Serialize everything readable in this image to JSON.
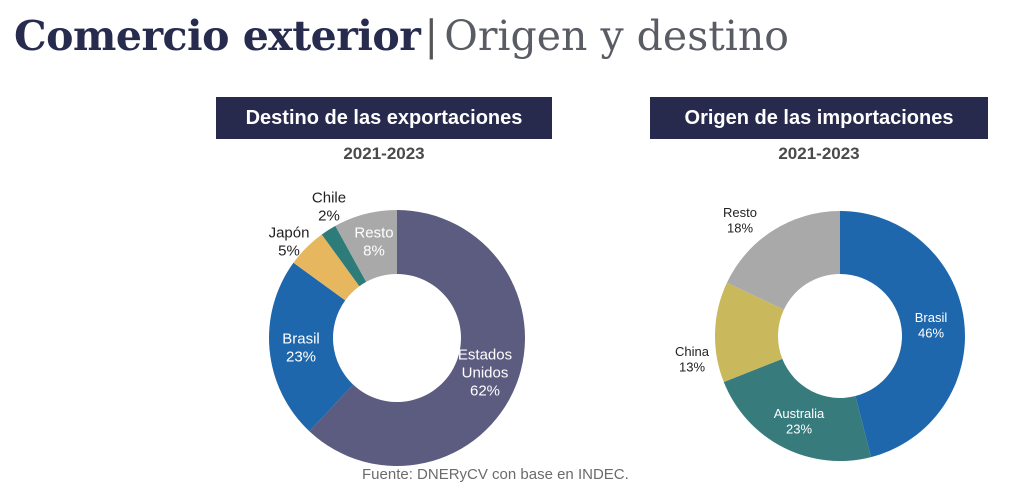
{
  "header": {
    "title_main": "Comercio exterior",
    "separator": "|",
    "title_sub": "Origen y destino"
  },
  "source": "Fuente: DNERyCV con base en INDEC.",
  "chart_data": [
    {
      "type": "pie",
      "variant": "donut",
      "title": "Destino de las exportaciones",
      "subtitle": "2021-2023",
      "categories": [
        "Estados Unidos",
        "Brasil",
        "Japón",
        "Chile",
        "Resto"
      ],
      "values": [
        62,
        23,
        5,
        2,
        8
      ],
      "unit": "%",
      "labels": [
        {
          "lines": [
            "Estados",
            "Unidos",
            "62%"
          ]
        },
        {
          "lines": [
            "Brasil",
            "23%"
          ]
        },
        {
          "lines": [
            "Japón",
            "5%"
          ]
        },
        {
          "lines": [
            "Chile",
            "2%"
          ]
        },
        {
          "lines": [
            "Resto",
            "8%"
          ]
        }
      ],
      "colors": [
        "#5c5b80",
        "#1f67ad",
        "#e6b75e",
        "#2e7c7a",
        "#a9a9a9"
      ],
      "start": "12 o'clock, clockwise"
    },
    {
      "type": "pie",
      "variant": "donut",
      "title": "Origen de las importaciones",
      "subtitle": "2021-2023",
      "categories": [
        "Brasil",
        "Australia",
        "China",
        "Resto"
      ],
      "values": [
        46,
        23,
        13,
        18
      ],
      "unit": "%",
      "labels": [
        {
          "lines": [
            "Brasil",
            "46%"
          ]
        },
        {
          "lines": [
            "Australia",
            "23%"
          ]
        },
        {
          "lines": [
            "China",
            "13%"
          ]
        },
        {
          "lines": [
            "Resto",
            "18%"
          ]
        }
      ],
      "colors": [
        "#1f67ad",
        "#377b7d",
        "#c9b95c",
        "#a9a9a9"
      ],
      "start": "12 o'clock, clockwise"
    }
  ]
}
